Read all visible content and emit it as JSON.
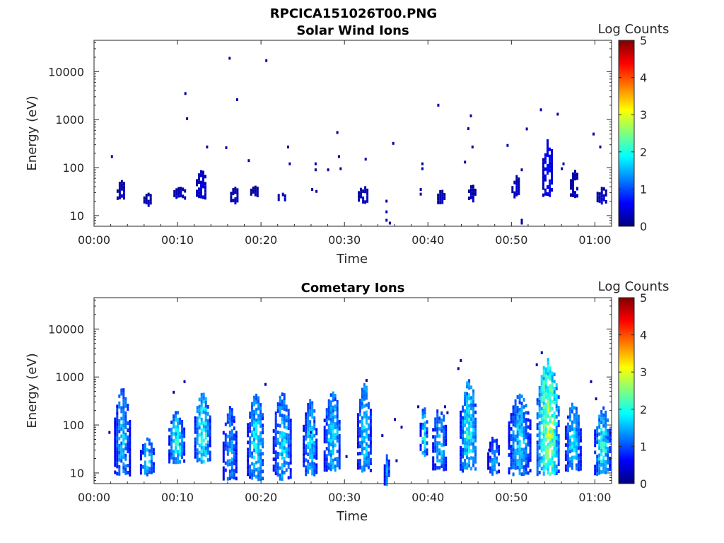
{
  "figure": {
    "title": "RPCICA151026T00.PNG"
  },
  "colorscale": [
    "#00007f",
    "#0000ff",
    "#007fff",
    "#00ffff",
    "#7fff7f",
    "#ffff00",
    "#ff7f00",
    "#ff0000",
    "#7f0000"
  ],
  "chart_data": [
    {
      "type": "heatmap",
      "title": "Solar Wind Ions",
      "xlabel": "Time",
      "ylabel": "Energy (eV)",
      "x_unit": "minutes since 00:00",
      "y_scale": "log",
      "xlim": [
        0,
        62
      ],
      "ylim": [
        6,
        45000
      ],
      "xticks": [
        0,
        10,
        20,
        30,
        40,
        50,
        60
      ],
      "xticklabels": [
        "00:00",
        "00:10",
        "00:20",
        "00:30",
        "00:40",
        "00:50",
        "01:00"
      ],
      "yticks": [
        10,
        100,
        1000,
        10000
      ],
      "yticklabels": [
        "10",
        "100",
        "1000",
        "10000"
      ],
      "colorbar": {
        "label": "Log Counts",
        "range": [
          0,
          5
        ],
        "ticks": [
          0,
          1,
          2,
          3,
          4,
          5
        ],
        "ticklabels": [
          "0",
          "1",
          "2",
          "3",
          "4",
          "5"
        ]
      },
      "clusters": [
        {
          "t": 3.2,
          "dt": 0.5,
          "e": 25,
          "e_hi": 55,
          "lvl": 0.3
        },
        {
          "t": 6.4,
          "dt": 0.5,
          "e": 18,
          "e_hi": 30,
          "lvl": 0.3
        },
        {
          "t": 10.2,
          "dt": 0.7,
          "e": 25,
          "e_hi": 40,
          "lvl": 0.4
        },
        {
          "t": 12.8,
          "dt": 0.6,
          "e": 25,
          "e_hi": 90,
          "lvl": 0.45
        },
        {
          "t": 16.8,
          "dt": 0.5,
          "e": 20,
          "e_hi": 40,
          "lvl": 0.3
        },
        {
          "t": 19.2,
          "dt": 0.5,
          "e": 28,
          "e_hi": 42,
          "lvl": 0.3
        },
        {
          "t": 22.5,
          "dt": 0.5,
          "e": 22,
          "e_hi": 42,
          "lvl": 0.35
        },
        {
          "t": 32.2,
          "dt": 0.6,
          "e": 20,
          "e_hi": 42,
          "lvl": 0.35
        },
        {
          "t": 41.5,
          "dt": 0.4,
          "e": 20,
          "e_hi": 35,
          "lvl": 0.3
        },
        {
          "t": 45.2,
          "dt": 0.4,
          "e": 22,
          "e_hi": 45,
          "lvl": 0.3
        },
        {
          "t": 50.5,
          "dt": 0.5,
          "e": 25,
          "e_hi": 70,
          "lvl": 0.35
        },
        {
          "t": 54.3,
          "dt": 0.6,
          "e": 28,
          "e_hi": 400,
          "lvl": 0.6
        },
        {
          "t": 57.5,
          "dt": 0.5,
          "e": 25,
          "e_hi": 90,
          "lvl": 0.3
        },
        {
          "t": 60.8,
          "dt": 0.6,
          "e": 20,
          "e_hi": 40,
          "lvl": 0.35
        }
      ],
      "points": [
        {
          "t": 2.1,
          "e": 170
        },
        {
          "t": 10.9,
          "e": 3500
        },
        {
          "t": 11.1,
          "e": 1050
        },
        {
          "t": 16.2,
          "e": 19000
        },
        {
          "t": 17.1,
          "e": 2600
        },
        {
          "t": 20.6,
          "e": 17000
        },
        {
          "t": 15.8,
          "e": 260
        },
        {
          "t": 13.5,
          "e": 270
        },
        {
          "t": 23.2,
          "e": 270
        },
        {
          "t": 23.4,
          "e": 120
        },
        {
          "t": 29.1,
          "e": 540
        },
        {
          "t": 29.3,
          "e": 170
        },
        {
          "t": 32.5,
          "e": 150
        },
        {
          "t": 35.8,
          "e": 320
        },
        {
          "t": 41.2,
          "e": 2000
        },
        {
          "t": 44.8,
          "e": 650
        },
        {
          "t": 45.1,
          "e": 1200
        },
        {
          "t": 45.3,
          "e": 270
        },
        {
          "t": 49.5,
          "e": 290
        },
        {
          "t": 51.8,
          "e": 640
        },
        {
          "t": 53.5,
          "e": 1600
        },
        {
          "t": 55.5,
          "e": 1300
        },
        {
          "t": 59.8,
          "e": 500
        },
        {
          "t": 60.6,
          "e": 270
        },
        {
          "t": 18.5,
          "e": 140
        },
        {
          "t": 26.5,
          "e": 120
        },
        {
          "t": 26.5,
          "e": 90
        },
        {
          "t": 28.0,
          "e": 90
        },
        {
          "t": 29.5,
          "e": 95
        },
        {
          "t": 39.3,
          "e": 120
        },
        {
          "t": 39.3,
          "e": 95
        },
        {
          "t": 44.4,
          "e": 130
        },
        {
          "t": 51.2,
          "e": 90
        },
        {
          "t": 56.2,
          "e": 120
        },
        {
          "t": 56.0,
          "e": 95
        },
        {
          "t": 35.0,
          "e": 20
        },
        {
          "t": 35.0,
          "e": 12
        },
        {
          "t": 35.0,
          "e": 8
        },
        {
          "t": 35.4,
          "e": 7
        },
        {
          "t": 51.2,
          "e": 8
        },
        {
          "t": 51.2,
          "e": 7
        },
        {
          "t": 39.1,
          "e": 35
        },
        {
          "t": 39.1,
          "e": 28
        },
        {
          "t": 26.1,
          "e": 35
        },
        {
          "t": 26.6,
          "e": 32
        }
      ]
    },
    {
      "type": "heatmap",
      "title": "Cometary Ions",
      "xlabel": "Time",
      "ylabel": "Energy (eV)",
      "x_unit": "minutes since 00:00",
      "y_scale": "log",
      "xlim": [
        0,
        62
      ],
      "ylim": [
        6,
        45000
      ],
      "xticks": [
        0,
        10,
        20,
        30,
        40,
        50,
        60
      ],
      "xticklabels": [
        "00:00",
        "00:10",
        "00:20",
        "00:30",
        "00:40",
        "00:50",
        "01:00"
      ],
      "yticks": [
        10,
        100,
        1000,
        10000
      ],
      "yticklabels": [
        "10",
        "100",
        "1000",
        "10000"
      ],
      "colorbar": {
        "label": "Log Counts",
        "range": [
          0,
          5
        ],
        "ticks": [
          0,
          1,
          2,
          3,
          4,
          5
        ],
        "ticklabels": [
          "0",
          "1",
          "2",
          "3",
          "4",
          "5"
        ]
      },
      "clusters": [
        {
          "t": 3.3,
          "dt": 0.9,
          "e": 10,
          "e_hi": 600,
          "lvl": 1.3
        },
        {
          "t": 6.3,
          "dt": 0.8,
          "e": 10,
          "e_hi": 55,
          "lvl": 1.4
        },
        {
          "t": 9.8,
          "dt": 0.9,
          "e": 18,
          "e_hi": 200,
          "lvl": 1.6
        },
        {
          "t": 12.9,
          "dt": 0.9,
          "e": 18,
          "e_hi": 480,
          "lvl": 1.7
        },
        {
          "t": 16.2,
          "dt": 0.8,
          "e": 8,
          "e_hi": 250,
          "lvl": 1.2
        },
        {
          "t": 19.3,
          "dt": 1.0,
          "e": 8,
          "e_hi": 450,
          "lvl": 1.5
        },
        {
          "t": 22.5,
          "dt": 1.1,
          "e": 8,
          "e_hi": 480,
          "lvl": 1.4
        },
        {
          "t": 25.8,
          "dt": 0.8,
          "e": 10,
          "e_hi": 350,
          "lvl": 1.4
        },
        {
          "t": 28.5,
          "dt": 1.0,
          "e": 12,
          "e_hi": 500,
          "lvl": 1.45
        },
        {
          "t": 32.3,
          "dt": 0.8,
          "e": 12,
          "e_hi": 750,
          "lvl": 1.5
        },
        {
          "t": 35.0,
          "dt": 0.3,
          "e": 6,
          "e_hi": 25,
          "lvl": 1.3
        },
        {
          "t": 39.4,
          "dt": 0.4,
          "e": 25,
          "e_hi": 250,
          "lvl": 1.6
        },
        {
          "t": 41.3,
          "dt": 0.8,
          "e": 12,
          "e_hi": 250,
          "lvl": 1.3
        },
        {
          "t": 44.8,
          "dt": 1.0,
          "e": 12,
          "e_hi": 900,
          "lvl": 1.6
        },
        {
          "t": 47.8,
          "dt": 0.7,
          "e": 10,
          "e_hi": 60,
          "lvl": 1.2
        },
        {
          "t": 50.9,
          "dt": 1.3,
          "e": 10,
          "e_hi": 450,
          "lvl": 1.4
        },
        {
          "t": 54.3,
          "dt": 1.3,
          "e": 10,
          "e_hi": 2500,
          "lvl": 2.2
        },
        {
          "t": 57.3,
          "dt": 0.9,
          "e": 12,
          "e_hi": 300,
          "lvl": 1.5
        },
        {
          "t": 60.8,
          "dt": 0.9,
          "e": 10,
          "e_hi": 250,
          "lvl": 1.6
        }
      ],
      "points": [
        {
          "t": 1.8,
          "e": 70
        },
        {
          "t": 10.8,
          "e": 800
        },
        {
          "t": 9.5,
          "e": 480
        },
        {
          "t": 20.5,
          "e": 700
        },
        {
          "t": 32.6,
          "e": 850
        },
        {
          "t": 36.0,
          "e": 130
        },
        {
          "t": 34.5,
          "e": 60
        },
        {
          "t": 36.8,
          "e": 90
        },
        {
          "t": 43.9,
          "e": 2200
        },
        {
          "t": 43.6,
          "e": 1500
        },
        {
          "t": 53.0,
          "e": 1800
        },
        {
          "t": 53.6,
          "e": 3200
        },
        {
          "t": 42.0,
          "e": 240
        },
        {
          "t": 42.3,
          "e": 180
        },
        {
          "t": 38.8,
          "e": 240
        },
        {
          "t": 59.5,
          "e": 800
        },
        {
          "t": 60.1,
          "e": 350
        },
        {
          "t": 30.2,
          "e": 22
        },
        {
          "t": 36.2,
          "e": 18
        },
        {
          "t": 25.9,
          "e": 70
        },
        {
          "t": 47.3,
          "e": 30
        }
      ]
    }
  ]
}
